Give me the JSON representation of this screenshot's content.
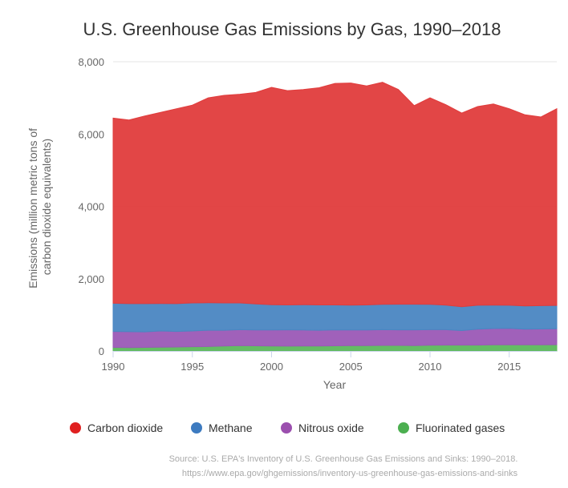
{
  "chart_data": {
    "type": "area",
    "stacked": true,
    "title": "U.S. Greenhouse Gas Emissions by Gas, 1990–2018",
    "xlabel": "Year",
    "ylabel": "Emissions (million metric tons of carbon dioxide equivalents)",
    "ylabel_lines": [
      "Emissions (million metric tons of",
      "carbon dioxide equivalents)"
    ],
    "x": [
      1990,
      1991,
      1992,
      1993,
      1994,
      1995,
      1996,
      1997,
      1998,
      1999,
      2000,
      2001,
      2002,
      2003,
      2004,
      2005,
      2006,
      2007,
      2008,
      2009,
      2010,
      2011,
      2012,
      2013,
      2014,
      2015,
      2016,
      2017,
      2018
    ],
    "xlim": [
      1990,
      2018
    ],
    "ylim": [
      0,
      8000
    ],
    "x_ticks": [
      1990,
      1995,
      2000,
      2005,
      2010,
      2015
    ],
    "y_ticks": [
      0,
      2000,
      4000,
      6000,
      8000
    ],
    "y_tick_labels": [
      "0",
      "2,000",
      "4,000",
      "6,000",
      "8,000"
    ],
    "grid": true,
    "legend_position": "bottom",
    "series": [
      {
        "name": "Fluorinated gases",
        "color": "#5cb85c",
        "values": [
          100,
          95,
          100,
          105,
          110,
          120,
          125,
          140,
          150,
          145,
          140,
          135,
          140,
          140,
          145,
          150,
          150,
          155,
          155,
          150,
          160,
          165,
          165,
          165,
          170,
          170,
          170,
          170,
          175
        ]
      },
      {
        "name": "Nitrous oxide",
        "color": "#9b59b6",
        "values": [
          440,
          440,
          430,
          450,
          430,
          435,
          450,
          435,
          440,
          435,
          440,
          450,
          440,
          435,
          440,
          430,
          430,
          435,
          430,
          435,
          430,
          425,
          400,
          440,
          450,
          455,
          435,
          440,
          440
        ]
      },
      {
        "name": "Methane",
        "color": "#4a86c2",
        "values": [
          780,
          775,
          780,
          760,
          770,
          775,
          760,
          755,
          740,
          720,
          700,
          690,
          700,
          700,
          690,
          690,
          695,
          700,
          710,
          710,
          700,
          680,
          660,
          660,
          650,
          640,
          640,
          645,
          645
        ]
      },
      {
        "name": "Carbon dioxide",
        "color": "#e03c3c",
        "values": [
          5120,
          5080,
          5190,
          5285,
          5390,
          5470,
          5665,
          5740,
          5770,
          5850,
          6010,
          5925,
          5950,
          6005,
          6125,
          6140,
          6055,
          6140,
          5935,
          5490,
          5710,
          5540,
          5355,
          5495,
          5560,
          5435,
          5285,
          5215,
          5440
        ]
      }
    ],
    "legend_order": [
      "Carbon dioxide",
      "Methane",
      "Nitrous oxide",
      "Fluorinated gases"
    ],
    "legend_colors": [
      "#e02020",
      "#3d7bc0",
      "#9b4fae",
      "#4caf50"
    ],
    "source_lines": [
      "Source: U.S. EPA's Inventory of U.S. Greenhouse Gas Emissions and Sinks: 1990–2018.",
      "https://www.epa.gov/ghgemissions/inventory-us-greenhouse-gas-emissions-and-sinks"
    ]
  }
}
